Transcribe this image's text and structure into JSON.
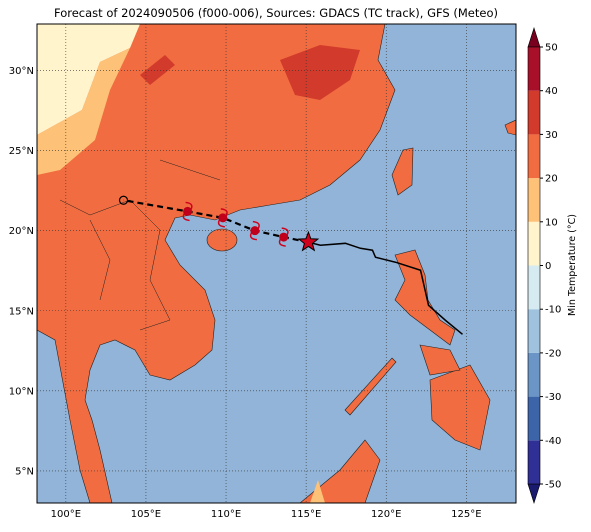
{
  "title": "Forecast of 2024090506 (f000-006), Sources: GDACS (TC track), GFS (Meteo)",
  "lon_range": [
    98.2,
    128.1
  ],
  "lat_range": [
    3,
    32.9
  ],
  "lon_ticks": [
    {
      "value": 100,
      "label": "100°E"
    },
    {
      "value": 105,
      "label": "105°E"
    },
    {
      "value": 110,
      "label": "110°E"
    },
    {
      "value": 115,
      "label": "115°E"
    },
    {
      "value": 120,
      "label": "120°E"
    },
    {
      "value": 125,
      "label": "125°E"
    }
  ],
  "lat_ticks": [
    {
      "value": 5,
      "label": "5°N"
    },
    {
      "value": 10,
      "label": "10°N"
    },
    {
      "value": 15,
      "label": "15°N"
    },
    {
      "value": 20,
      "label": "20°N"
    },
    {
      "value": 25,
      "label": "25°N"
    },
    {
      "value": 30,
      "label": "30°N"
    }
  ],
  "colorbar": {
    "label": "Min Temperature (°C)",
    "ticks": [
      -50,
      -40,
      -30,
      -20,
      -10,
      0,
      10,
      20,
      30,
      40,
      50
    ],
    "colors": [
      "#1a1a6e",
      "#2f2f96",
      "#3c64a8",
      "#6a95c6",
      "#9fc3de",
      "#d6eaf1",
      "#fff4cc",
      "#fdc277",
      "#f16c40",
      "#d23a2b",
      "#a8102a",
      "#7a0020"
    ]
  },
  "track": {
    "observed": {
      "lon": [
        124.76,
        123.7,
        122.64,
        122.14,
        120.58,
        119.33,
        119.14,
        118.39,
        117.45,
        115.89,
        115.14
      ],
      "lat": [
        13.53,
        14.4,
        15.34,
        17.53,
        18.03,
        18.34,
        18.78,
        18.9,
        19.21,
        19.09,
        19.28
      ]
    },
    "forecast": {
      "lon": [
        115.14,
        113.6,
        111.8,
        109.8,
        107.6,
        103.6
      ],
      "lat": [
        19.28,
        19.6,
        20.0,
        20.8,
        21.2,
        21.9
      ]
    }
  }
}
